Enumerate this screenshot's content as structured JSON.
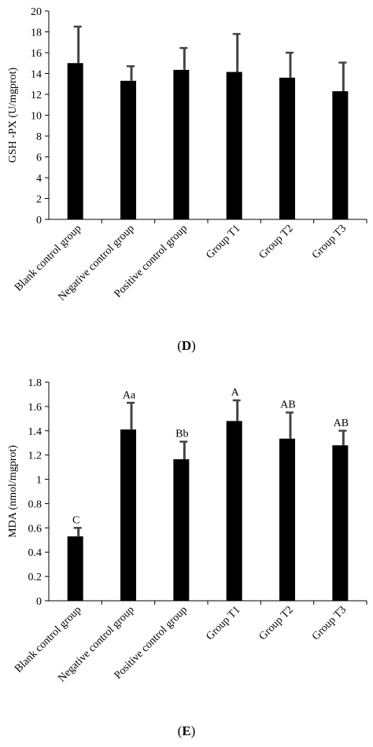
{
  "chart_data": [
    {
      "type": "bar",
      "panel": "D",
      "categories": [
        "Blank control group",
        "Negative control group",
        "Positive control group",
        "Group T1",
        "Group T2",
        "Group T3"
      ],
      "values": [
        15.0,
        13.3,
        14.35,
        14.15,
        13.6,
        12.3
      ],
      "errors": [
        3.5,
        1.4,
        2.1,
        3.65,
        2.4,
        2.75
      ],
      "annotations": [
        "",
        "",
        "",
        "",
        "",
        ""
      ],
      "ylabel": "GSH -PX (U/mgprot)",
      "xlabel": "",
      "title": "",
      "ylim": [
        0,
        20
      ],
      "yticks": [
        "0",
        "2",
        "4",
        "6",
        "8",
        "10",
        "12",
        "14",
        "16",
        "18",
        "20"
      ],
      "grid": false,
      "bar_color": "#000000"
    },
    {
      "type": "bar",
      "panel": "E",
      "categories": [
        "Blank control group",
        "Negative control group",
        "Positive control group",
        "Group T1",
        "Group T2",
        "Group T3"
      ],
      "values": [
        0.53,
        1.41,
        1.165,
        1.48,
        1.335,
        1.28
      ],
      "errors": [
        0.07,
        0.22,
        0.145,
        0.17,
        0.215,
        0.12
      ],
      "annotations": [
        "C",
        "Aa",
        "Bb",
        "A",
        "AB",
        "AB"
      ],
      "ylabel": "MDA (nmol/mgprot)",
      "xlabel": "",
      "title": "",
      "ylim": [
        0,
        1.8
      ],
      "yticks": [
        "0",
        "0.2",
        "0.4",
        "0.6",
        "0.8",
        "1",
        "1.2",
        "1.4",
        "1.6",
        "1.8"
      ],
      "grid": false,
      "bar_color": "#000000"
    }
  ],
  "panel_labels": {
    "d": "D",
    "e": "E"
  }
}
